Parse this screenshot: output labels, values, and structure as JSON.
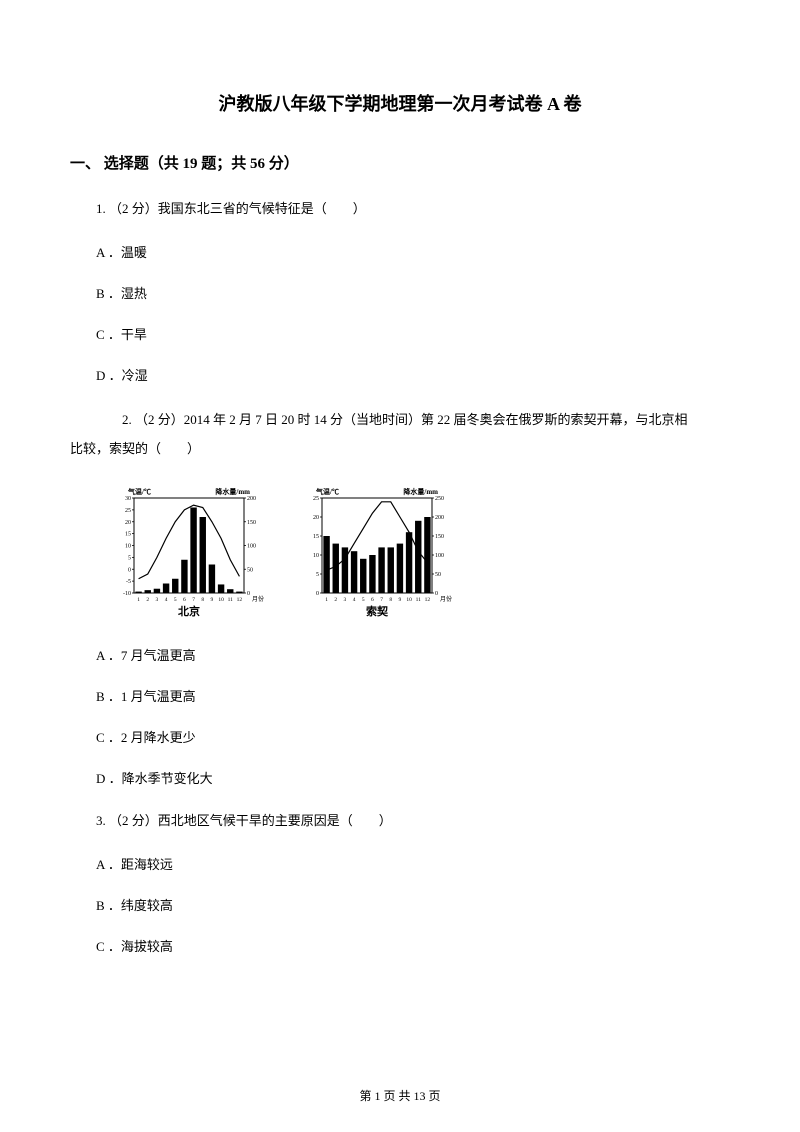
{
  "title": "沪教版八年级下学期地理第一次月考试卷 A 卷",
  "section_header": "一、 选择题（共 19 题；共 56 分）",
  "q1": {
    "text": "1. （2 分）我国东北三省的气候特征是（　　）",
    "a": "A ．温暖",
    "b": "B ．湿热",
    "c": "C ．干旱",
    "d": "D ．冷湿"
  },
  "q2": {
    "line1": "　　2. （2 分）2014 年 2 月 7 日 20 时 14 分（当地时间）第 22 届冬奥会在俄罗斯的索契开幕，与北京相",
    "line2": "比较，索契的（　　）",
    "a": "A ．7 月气温更高",
    "b": "B ．1 月气温更高",
    "c": "C ．2 月降水更少",
    "d": "D ．降水季节变化大"
  },
  "q3": {
    "text": "3. （2 分）西北地区气候干旱的主要原因是（　　）",
    "a": "A ．距海较远",
    "b": "B ．纬度较高",
    "c": "C ．海拔较高"
  },
  "chart1": {
    "label_left": "气温/℃",
    "label_right": "降水量/mm",
    "title": "北京",
    "temp_ticks": [
      "30",
      "25",
      "20",
      "15",
      "10",
      "5",
      "0",
      "-5",
      "-10"
    ],
    "precip_ticks": [
      "200",
      "150",
      "100",
      "50",
      "0"
    ],
    "months": [
      "1",
      "2",
      "3",
      "4",
      "5",
      "6",
      "7",
      "8",
      "9",
      "10",
      "11",
      "12"
    ],
    "month_label": "月份",
    "bar_values": [
      3,
      6,
      9,
      20,
      30,
      70,
      180,
      160,
      60,
      18,
      8,
      3
    ],
    "temp_values": [
      -4,
      -2,
      5,
      13,
      20,
      25,
      27,
      26,
      20,
      13,
      4,
      -3
    ],
    "bar_color": "#000000",
    "line_color": "#000000",
    "bg": "#ffffff",
    "axis_color": "#000000"
  },
  "chart2": {
    "label_left": "气温/℃",
    "label_right": "降水量/mm",
    "title": "索契",
    "temp_ticks": [
      "25",
      "20",
      "15",
      "10",
      "5",
      "0"
    ],
    "precip_ticks": [
      "250",
      "200",
      "150",
      "100",
      "50",
      "0"
    ],
    "months": [
      "1",
      "2",
      "3",
      "4",
      "5",
      "6",
      "7",
      "8",
      "9",
      "10",
      "11",
      "12"
    ],
    "month_label": "月份",
    "bar_values": [
      150,
      130,
      120,
      110,
      90,
      100,
      120,
      120,
      130,
      160,
      190,
      200
    ],
    "temp_values": [
      6,
      7,
      9,
      13,
      17,
      21,
      24,
      24,
      20,
      16,
      11,
      8
    ],
    "bar_color": "#000000",
    "line_color": "#000000",
    "bg": "#ffffff",
    "axis_color": "#000000"
  },
  "footer": "第 1 页 共 13 页"
}
